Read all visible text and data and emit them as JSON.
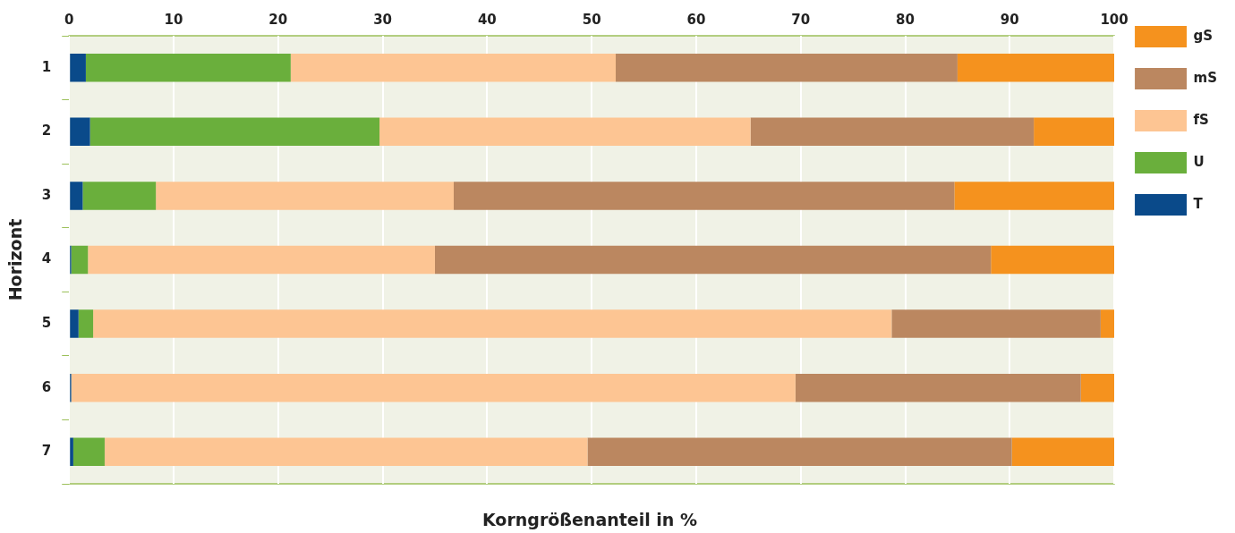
{
  "chart_data": {
    "type": "bar",
    "orientation": "horizontal",
    "stacked": true,
    "xlabel": "Korngrößenanteil in %",
    "ylabel": "Horizont",
    "categories": [
      "1",
      "2",
      "3",
      "4",
      "5",
      "6",
      "7"
    ],
    "series": [
      {
        "name": "T",
        "color": "#0a4a8a",
        "values": [
          1.6,
          2.0,
          1.3,
          0.2,
          0.9,
          0.2,
          0.4
        ]
      },
      {
        "name": "U",
        "color": "#6aaf3c",
        "values": [
          19.6,
          27.7,
          7.0,
          1.6,
          1.4,
          0,
          3.0
        ]
      },
      {
        "name": "fS",
        "color": "#fdc593",
        "values": [
          31.1,
          35.5,
          28.5,
          33.2,
          76.4,
          69.3,
          46.2
        ]
      },
      {
        "name": "mS",
        "color": "#bb8760",
        "values": [
          32.7,
          27.1,
          47.9,
          53.2,
          20.0,
          27.3,
          40.6
        ]
      },
      {
        "name": "gS",
        "color": "#f5921e",
        "values": [
          15.0,
          7.7,
          15.3,
          11.8,
          1.3,
          3.2,
          9.8
        ]
      }
    ],
    "xlim": [
      0,
      100
    ],
    "xticks": [
      0,
      10,
      20,
      30,
      40,
      50,
      60,
      70,
      80,
      90,
      100
    ],
    "grid": "x",
    "legend": "top right"
  }
}
